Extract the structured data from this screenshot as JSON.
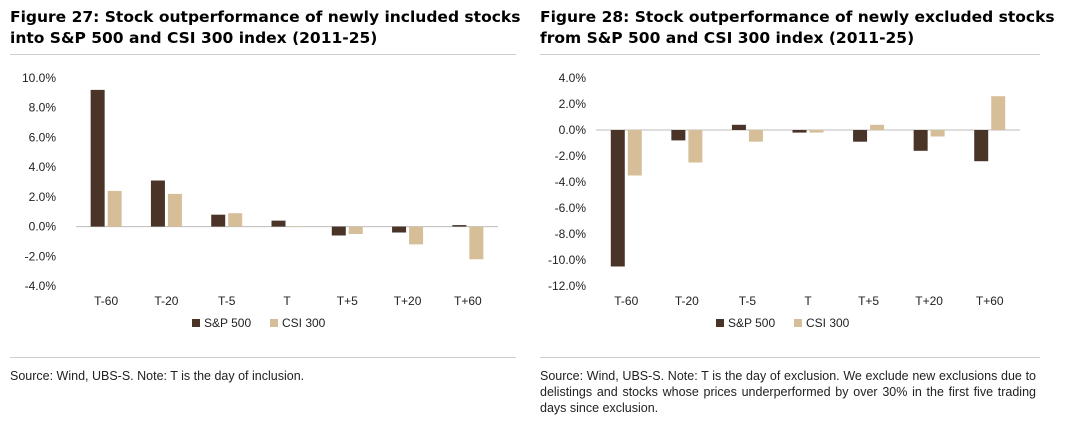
{
  "colors": {
    "sp500": "#4a3428",
    "csi300": "#d6bf98"
  },
  "chart_data": [
    {
      "type": "bar",
      "title": "Figure 27: Stock outperformance of newly included stocks into S&P 500 and CSI 300 index (2011-25)",
      "title_lines": [
        "Figure 27: Stock outperformance of newly included stocks",
        "into S&P 500 and CSI 300 index (2011-25)"
      ],
      "xlabel": "",
      "ylabel": "",
      "categories": [
        "T-60",
        "T-20",
        "T-5",
        "T",
        "T+5",
        "T+20",
        "T+60"
      ],
      "series": [
        {
          "name": "S&P 500",
          "values": [
            9.2,
            3.1,
            0.8,
            0.4,
            -0.6,
            -0.4,
            0.1
          ]
        },
        {
          "name": "CSI 300",
          "values": [
            2.4,
            2.2,
            0.9,
            0.0,
            -0.5,
            -1.2,
            -2.2
          ]
        }
      ],
      "ylim": [
        -4.0,
        10.0
      ],
      "yticks": [
        -4.0,
        -2.0,
        0.0,
        2.0,
        4.0,
        6.0,
        8.0,
        10.0
      ],
      "ytick_labels": [
        "-4.0%",
        "-2.0%",
        "0.0%",
        "2.0%",
        "4.0%",
        "6.0%",
        "8.0%",
        "10.0%"
      ],
      "grid": false,
      "legend_position": "bottom-center",
      "source": "Source: Wind, UBS-S. Note: T is the day of inclusion."
    },
    {
      "type": "bar",
      "title": "Figure 28: Stock outperformance of newly excluded stocks from S&P 500 and CSI 300 index (2011-25)",
      "title_lines": [
        "Figure 28: Stock outperformance of newly excluded stocks",
        "from S&P 500 and CSI 300 index (2011-25)"
      ],
      "xlabel": "",
      "ylabel": "",
      "categories": [
        "T-60",
        "T-20",
        "T-5",
        "T",
        "T+5",
        "T+20",
        "T+60"
      ],
      "series": [
        {
          "name": "S&P 500",
          "values": [
            -10.5,
            -0.8,
            0.4,
            -0.2,
            -0.9,
            -1.6,
            -2.4
          ]
        },
        {
          "name": "CSI 300",
          "values": [
            -3.5,
            -2.5,
            -0.9,
            -0.2,
            0.4,
            -0.5,
            2.6
          ]
        }
      ],
      "ylim": [
        -12.0,
        4.0
      ],
      "yticks": [
        -12.0,
        -10.0,
        -8.0,
        -6.0,
        -4.0,
        -2.0,
        0.0,
        2.0,
        4.0
      ],
      "ytick_labels": [
        "-12.0%",
        "-10.0%",
        "-8.0%",
        "-6.0%",
        "-4.0%",
        "-2.0%",
        "0.0%",
        "2.0%",
        "4.0%"
      ],
      "grid": false,
      "legend_position": "bottom-center",
      "source": "Source: Wind, UBS-S. Note: T is the day of exclusion. We exclude new exclusions due to delistings and stocks whose prices underperformed by over 30% in the first five trading days since exclusion."
    }
  ]
}
